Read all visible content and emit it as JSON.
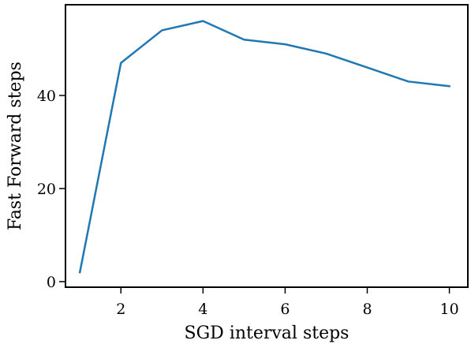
{
  "chart_data": {
    "type": "line",
    "title": "",
    "xlabel": "SGD interval steps",
    "ylabel": "Fast Forward steps",
    "xlim": [
      0.65,
      10.45
    ],
    "ylim": [
      -1.2,
      59.5
    ],
    "xticks": [
      2,
      4,
      6,
      8,
      10
    ],
    "yticks": [
      0,
      20,
      40
    ],
    "grid": false,
    "legend": "none",
    "series": [
      {
        "color": "#1f77b4",
        "x": [
          1,
          2,
          3,
          4,
          5,
          6,
          7,
          8,
          9,
          10
        ],
        "y": [
          2,
          47,
          54,
          56,
          52,
          51,
          49,
          46,
          43,
          42
        ]
      }
    ]
  }
}
